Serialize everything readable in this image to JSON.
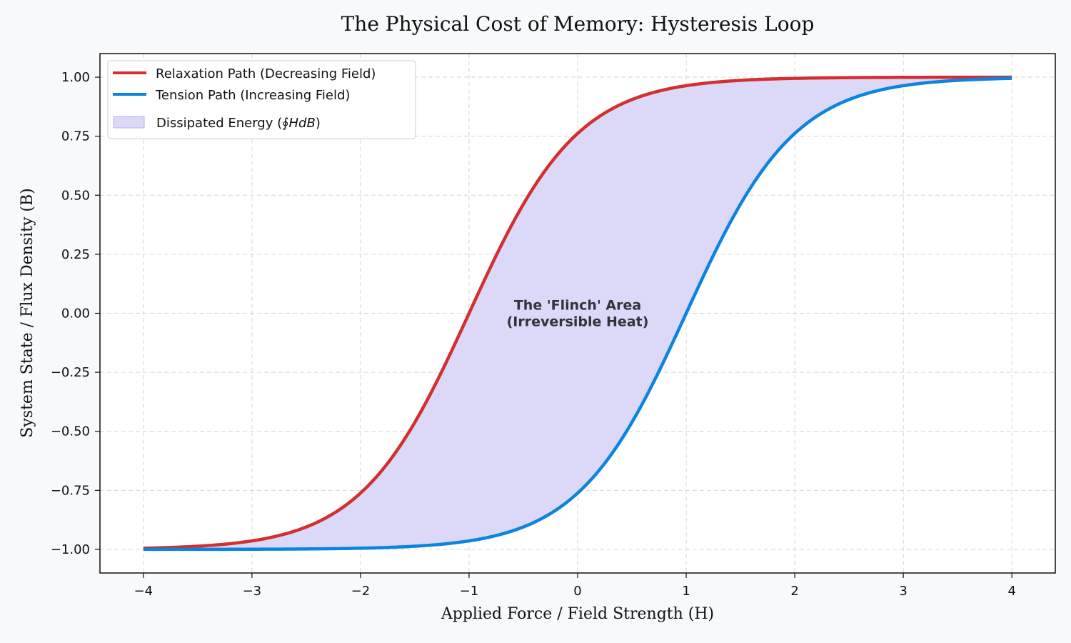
{
  "chart_data": {
    "type": "line",
    "title": "The Physical Cost of Memory: Hysteresis Loop",
    "xlabel": "Applied Force / Field Strength (H)",
    "ylabel": "System State / Flux Density (B)",
    "xlim": [
      -4.4,
      4.4
    ],
    "ylim": [
      -1.1,
      1.1
    ],
    "xticks": [
      -4,
      -3,
      -2,
      -1,
      0,
      1,
      2,
      3,
      4
    ],
    "xtick_labels": [
      "−4",
      "−3",
      "−2",
      "−1",
      "0",
      "1",
      "2",
      "3",
      "4"
    ],
    "yticks": [
      -1.0,
      -0.75,
      -0.5,
      -0.25,
      0.0,
      0.25,
      0.5,
      0.75,
      1.0
    ],
    "ytick_labels": [
      "−1.00",
      "−0.75",
      "−0.50",
      "−0.25",
      "0.00",
      "0.25",
      "0.50",
      "0.75",
      "1.00"
    ],
    "grid": true,
    "legend_position": "top-left",
    "x_range": [
      -4,
      4
    ],
    "series": [
      {
        "name": "Relaxation Path (Decreasing Field)",
        "color": "#d32f2f",
        "function": "tanh(H + 1)",
        "x": [
          -4,
          -3.5,
          -3,
          -2.5,
          -2,
          -1.5,
          -1,
          -0.5,
          0,
          0.5,
          1,
          1.5,
          2,
          2.5,
          3,
          3.5,
          4
        ],
        "y": [
          -0.995,
          -0.987,
          -0.964,
          -0.905,
          -0.762,
          -0.462,
          0.0,
          0.462,
          0.762,
          0.905,
          0.964,
          0.987,
          0.995,
          0.998,
          0.999,
          1.0,
          1.0
        ]
      },
      {
        "name": "Tension Path (Increasing Field)",
        "color": "#0b84e0",
        "function": "tanh(H - 1)",
        "x": [
          -4,
          -3.5,
          -3,
          -2.5,
          -2,
          -1.5,
          -1,
          -0.5,
          0,
          0.5,
          1,
          1.5,
          2,
          2.5,
          3,
          3.5,
          4
        ],
        "y": [
          -1.0,
          -1.0,
          -0.999,
          -0.998,
          -0.995,
          -0.987,
          -0.964,
          -0.905,
          -0.762,
          -0.462,
          0.0,
          0.462,
          0.762,
          0.905,
          0.964,
          0.987,
          0.995
        ]
      }
    ],
    "fill": {
      "name": "Dissipated Energy",
      "label_prefix": "Dissipated Energy (",
      "label_math": "∮HdB",
      "label_suffix": ")",
      "color": "#dcd8f8",
      "edge_color": "#b7b0ee"
    },
    "annotation": {
      "line1": "The 'Flinch' Area",
      "line2": "(Irreversible Heat)",
      "x": 0,
      "y": 0
    }
  }
}
